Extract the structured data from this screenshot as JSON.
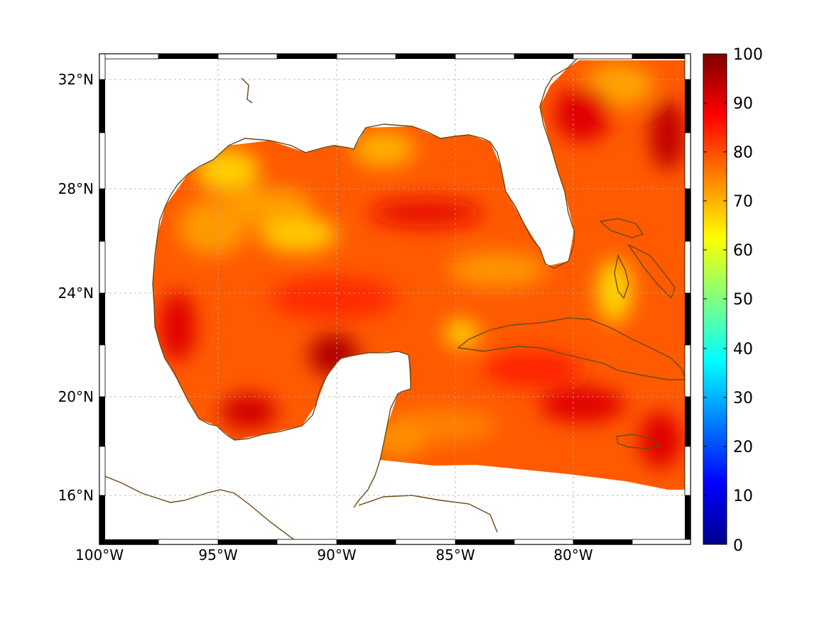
{
  "map": {
    "region": "Gulf of Mexico and western Caribbean",
    "lon_range": [
      -100,
      -75
    ],
    "lat_range": [
      14.2,
      33
    ],
    "lon_ticks": [
      "100°W",
      "95°W",
      "90°W",
      "85°W",
      "80°W"
    ],
    "lat_ticks": [
      "32°N",
      "28°N",
      "24°N",
      "20°N",
      "16°N"
    ],
    "grid": true,
    "coastline_color": "#6b4a12"
  },
  "colorbar": {
    "min": 0,
    "max": 100,
    "labels": [
      "100",
      "90",
      "80",
      "70",
      "60",
      "50",
      "40",
      "30",
      "20",
      "10",
      "0"
    ],
    "colormap": "jet",
    "colors": [
      "#00008f",
      "#0000ff",
      "#0080ff",
      "#00ffff",
      "#80ff80",
      "#ffff00",
      "#ff8000",
      "#ff0000",
      "#800000"
    ]
  },
  "field": {
    "typical_value_range": [
      70,
      95
    ],
    "dominant_colors": [
      "#ff6a00",
      "#ff3300",
      "#ffcc00",
      "#b30000"
    ]
  }
}
